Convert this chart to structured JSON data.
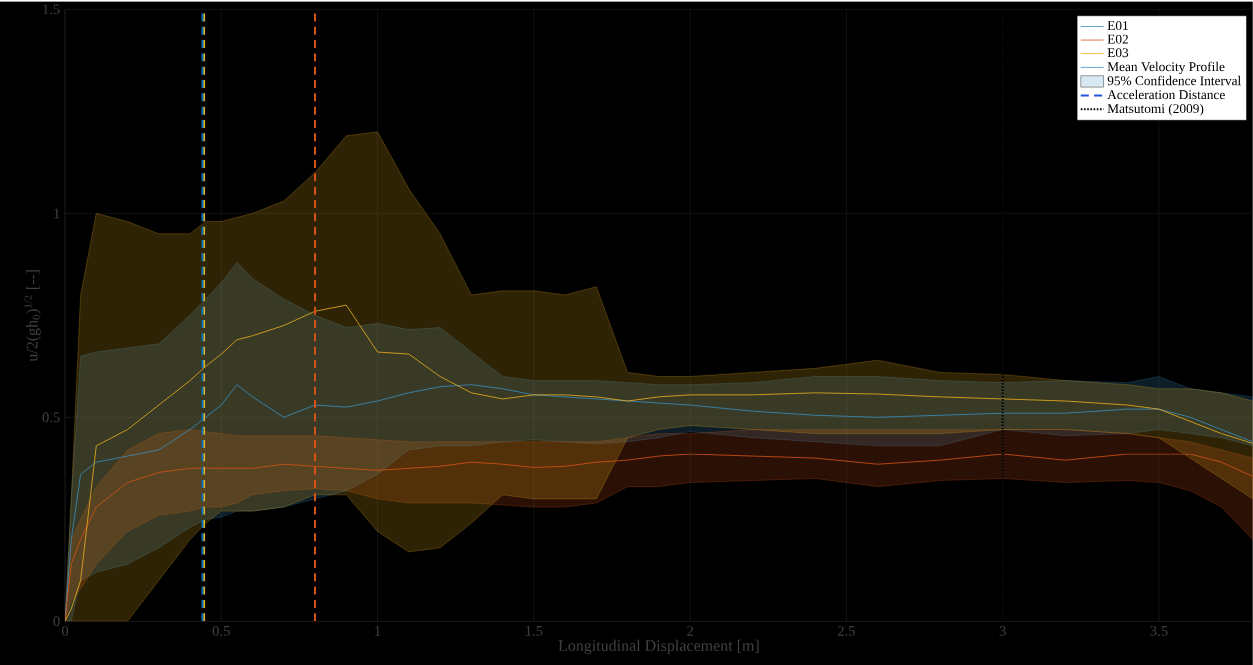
{
  "chart_data": {
    "type": "line",
    "xlabel": "Longitudinal Displacement [m]",
    "ylabel": "u/2(gh$_{0}$)$^{1/2}$ [--]",
    "x": [
      0,
      0.02,
      0.05,
      0.1,
      0.2,
      0.3,
      0.4,
      0.45,
      0.5,
      0.55,
      0.6,
      0.7,
      0.8,
      0.9,
      1.0,
      1.1,
      1.2,
      1.3,
      1.4,
      1.5,
      1.6,
      1.7,
      1.8,
      1.9,
      2.0,
      2.2,
      2.4,
      2.6,
      2.8,
      3.0,
      3.2,
      3.4,
      3.5,
      3.6,
      3.7,
      3.8
    ],
    "series": [
      {
        "name": "E01",
        "color": "#3b8fc4",
        "values": [
          0,
          0.2,
          0.36,
          0.39,
          0.405,
          0.42,
          0.47,
          0.5,
          0.53,
          0.58,
          0.55,
          0.5,
          0.53,
          0.525,
          0.54,
          0.56,
          0.575,
          0.58,
          0.57,
          0.555,
          0.55,
          0.545,
          0.54,
          0.535,
          0.53,
          0.515,
          0.505,
          0.5,
          0.505,
          0.51,
          0.51,
          0.52,
          0.52,
          0.5,
          0.47,
          0.44
        ],
        "lower": [
          0,
          0,
          0.1,
          0.12,
          0.14,
          0.18,
          0.23,
          0.25,
          0.255,
          0.27,
          0.27,
          0.28,
          0.3,
          0.32,
          0.36,
          0.42,
          0.43,
          0.43,
          0.44,
          0.445,
          0.44,
          0.435,
          0.44,
          0.45,
          0.465,
          0.45,
          0.44,
          0.43,
          0.43,
          0.47,
          0.455,
          0.46,
          0.47,
          0.46,
          0.45,
          0.43
        ],
        "upper": [
          0,
          0.3,
          0.65,
          0.66,
          0.67,
          0.68,
          0.75,
          0.79,
          0.83,
          0.88,
          0.84,
          0.79,
          0.75,
          0.72,
          0.73,
          0.715,
          0.72,
          0.66,
          0.6,
          0.59,
          0.59,
          0.59,
          0.585,
          0.58,
          0.58,
          0.585,
          0.6,
          0.6,
          0.59,
          0.585,
          0.59,
          0.585,
          0.6,
          0.57,
          0.56,
          0.55
        ]
      },
      {
        "name": "E02",
        "color": "#d95319",
        "values": [
          0,
          0.14,
          0.2,
          0.28,
          0.34,
          0.365,
          0.375,
          0.375,
          0.375,
          0.375,
          0.375,
          0.385,
          0.38,
          0.375,
          0.37,
          0.375,
          0.38,
          0.39,
          0.385,
          0.377,
          0.38,
          0.39,
          0.395,
          0.405,
          0.41,
          0.405,
          0.4,
          0.385,
          0.395,
          0.41,
          0.395,
          0.41,
          0.41,
          0.41,
          0.39,
          0.355
        ],
        "lower": [
          0,
          0.05,
          0.08,
          0.14,
          0.22,
          0.26,
          0.27,
          0.28,
          0.28,
          0.29,
          0.31,
          0.32,
          0.325,
          0.32,
          0.3,
          0.29,
          0.29,
          0.29,
          0.285,
          0.28,
          0.28,
          0.29,
          0.33,
          0.33,
          0.34,
          0.345,
          0.35,
          0.33,
          0.345,
          0.35,
          0.34,
          0.345,
          0.34,
          0.32,
          0.28,
          0.2
        ],
        "upper": [
          0,
          0.2,
          0.25,
          0.33,
          0.42,
          0.46,
          0.47,
          0.465,
          0.46,
          0.455,
          0.455,
          0.455,
          0.455,
          0.45,
          0.445,
          0.44,
          0.44,
          0.44,
          0.44,
          0.44,
          0.44,
          0.44,
          0.45,
          0.46,
          0.46,
          0.47,
          0.47,
          0.47,
          0.47,
          0.47,
          0.47,
          0.46,
          0.45,
          0.44,
          0.42,
          0.4
        ]
      },
      {
        "name": "E03",
        "color": "#edb120",
        "values": [
          0,
          0.03,
          0.1,
          0.43,
          0.47,
          0.53,
          0.59,
          0.625,
          0.655,
          0.69,
          0.7,
          0.725,
          0.76,
          0.775,
          0.66,
          0.655,
          0.6,
          0.56,
          0.545,
          0.555,
          0.555,
          0.55,
          0.54,
          0.55,
          0.555,
          0.555,
          0.56,
          0.557,
          0.55,
          0.545,
          0.54,
          0.53,
          0.52,
          0.49,
          0.46,
          0.436
        ],
        "lower": [
          0,
          0,
          0,
          0,
          0,
          0.1,
          0.2,
          0.24,
          0.27,
          0.27,
          0.27,
          0.28,
          0.31,
          0.31,
          0.22,
          0.17,
          0.18,
          0.24,
          0.31,
          0.3,
          0.3,
          0.3,
          0.45,
          0.47,
          0.48,
          0.47,
          0.46,
          0.46,
          0.46,
          0.47,
          0.47,
          0.46,
          0.45,
          0.4,
          0.35,
          0.3
        ],
        "upper": [
          0,
          0.3,
          0.8,
          1.0,
          0.98,
          0.95,
          0.95,
          0.98,
          0.98,
          0.99,
          1.0,
          1.03,
          1.1,
          1.19,
          1.2,
          1.06,
          0.95,
          0.8,
          0.81,
          0.81,
          0.8,
          0.82,
          0.61,
          0.6,
          0.6,
          0.61,
          0.62,
          0.64,
          0.61,
          0.605,
          0.59,
          0.58,
          0.57,
          0.57,
          0.56,
          0.54
        ]
      }
    ],
    "annotations": [
      "Mean Velocity Profile",
      "95% Confidence Interval",
      "Acceleration Distance",
      "Matsutomi (2009)"
    ],
    "ref_lines": [
      {
        "axis": "x",
        "value": 0.445,
        "color": "#edb120",
        "line_style": "dashed"
      },
      {
        "axis": "x",
        "value": 0.44,
        "color": "#0072bd",
        "line_style": "dashed"
      },
      {
        "axis": "x",
        "value": 0.8,
        "color": "#d95319",
        "line_style": "dashed"
      },
      {
        "axis": "x",
        "value": 3.0,
        "color": "#000000",
        "line_style": "dotted"
      }
    ],
    "xlim": [
      0,
      3.8
    ],
    "ylim": [
      0,
      1.5
    ],
    "xticks": [
      0,
      0.5,
      1,
      1.5,
      2,
      2.5,
      3,
      3.5
    ],
    "yticks": [
      0,
      0.5,
      1,
      1.5
    ],
    "grid": true,
    "legend": "top right"
  }
}
